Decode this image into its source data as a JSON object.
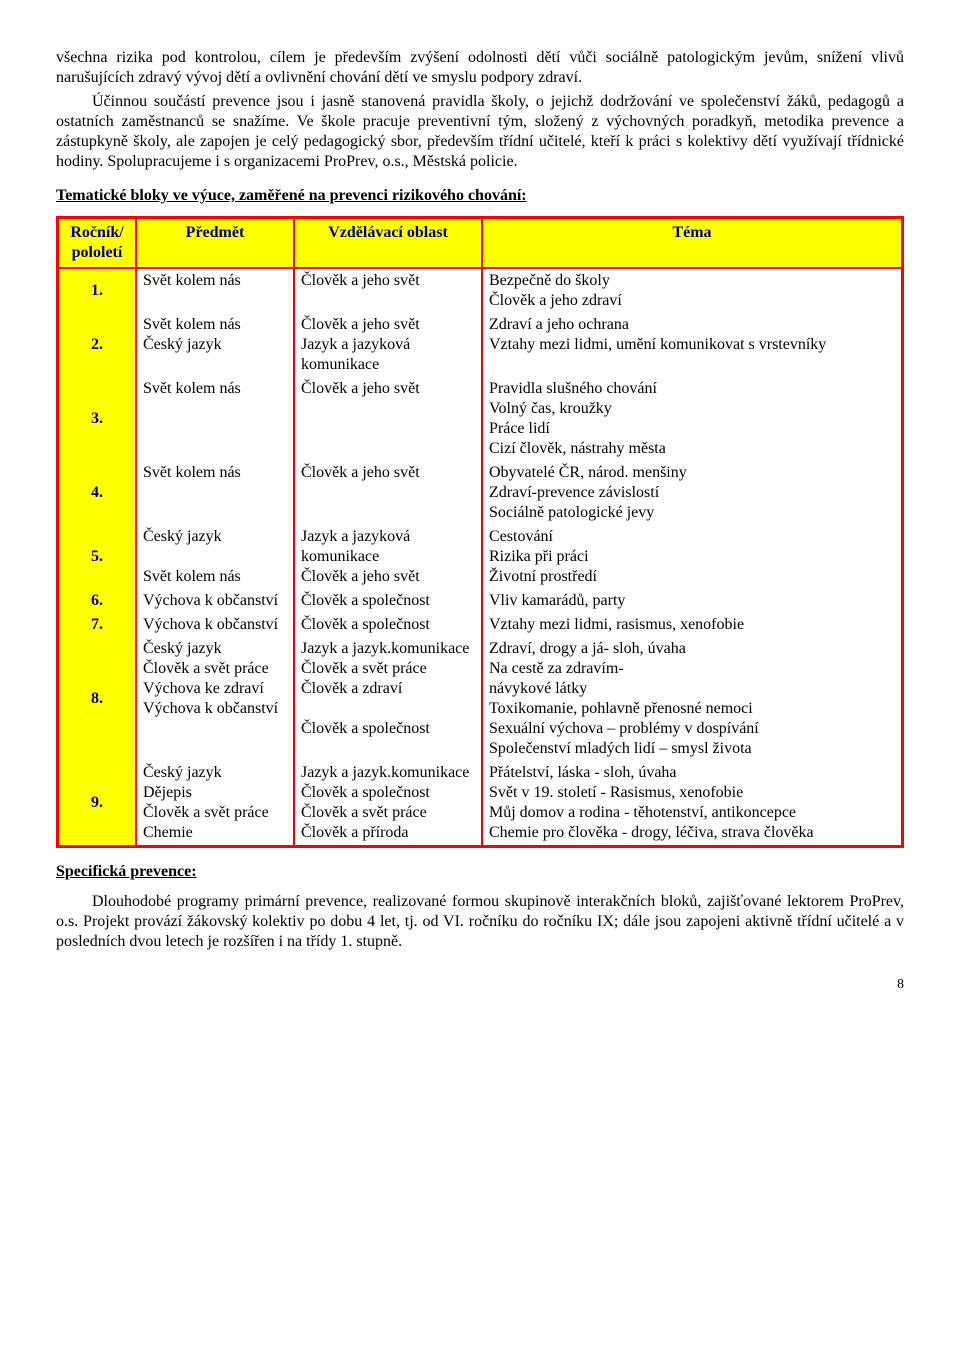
{
  "paragraphs": {
    "p1": "všechna rizika pod kontrolou, cílem je především zvýšení odolnosti dětí vůči sociálně patologickým jevům, snížení vlivů narušujících zdravý vývoj dětí a ovlivnění chování dětí ve smyslu podpory zdraví.",
    "p2": "Účinnou součástí prevence jsou i jasně stanovená pravidla školy, o jejichž dodržování ve společenství žáků, pedagogů a ostatních zaměstnanců se snažíme. Ve škole pracuje preventivní tým, složený z výchovných poradkyň, metodika prevence a zástupkyně školy, ale zapojen je celý pedagogický sbor, především třídní učitelé, kteří k práci s kolektivy dětí využívají třídnické hodiny. Spolupracujeme i s organizacemi ProPrev, o.s., Městská policie."
  },
  "headings": {
    "thematic": "Tematické bloky ve výuce, zaměřené na prevenci rizikového chování:",
    "specific": "Specifická prevence:"
  },
  "table": {
    "headers": {
      "grade": "Ročník/ pololetí",
      "subject": "Předmět",
      "area": "Vzdělávací oblast",
      "topic": "Téma"
    },
    "rows": [
      {
        "num": "1.",
        "subject": [
          "Svět kolem nás"
        ],
        "area": [
          "Člověk a jeho svět"
        ],
        "topic": [
          "Bezpečně do školy",
          "Člověk a jeho zdraví"
        ]
      },
      {
        "num": "2.",
        "subject": [
          "Svět kolem nás",
          "Český jazyk"
        ],
        "area": [
          "Člověk a jeho svět",
          "Jazyk a jazyková komunikace"
        ],
        "topic": [
          "Zdraví a jeho ochrana",
          "Vztahy mezi lidmi, umění komunikovat s vrstevníky"
        ]
      },
      {
        "num": "3.",
        "subject": [
          "Svět kolem nás"
        ],
        "area": [
          "Člověk a jeho svět"
        ],
        "topic": [
          "Pravidla slušného chování",
          "Volný čas, kroužky",
          "Práce lidí",
          "Cizí člověk, nástrahy města"
        ]
      },
      {
        "num": "4.",
        "subject": [
          "Svět kolem nás"
        ],
        "area": [
          "Člověk a jeho svět"
        ],
        "topic": [
          "Obyvatelé ČR, národ. menšiny",
          "Zdraví-prevence závislostí",
          "Sociálně patologické jevy"
        ]
      },
      {
        "num": "5.",
        "subject": [
          "Český jazyk",
          "",
          "Svět kolem nás"
        ],
        "area": [
          "Jazyk a jazyková komunikace",
          "Člověk a jeho svět"
        ],
        "topic": [
          "Cestování",
          "Rizika při práci",
          "Životní prostředí"
        ]
      },
      {
        "num": "6.",
        "subject": [
          "Výchova k občanství"
        ],
        "area": [
          "Člověk a společnost"
        ],
        "topic": [
          "Vliv kamarádů, party"
        ]
      },
      {
        "num": "7.",
        "subject": [
          "Výchova k občanství"
        ],
        "area": [
          "Člověk a společnost"
        ],
        "topic": [
          "Vztahy mezi lidmi, rasismus, xenofobie"
        ]
      },
      {
        "num": "8.",
        "subject": [
          "Český jazyk",
          "Člověk a svět práce",
          "Výchova ke zdraví",
          "Výchova k občanství"
        ],
        "area": [
          "Jazyk a jazyk.komunikace",
          "Člověk a svět práce",
          "Člověk a zdraví",
          "",
          "Člověk a společnost"
        ],
        "topic": [
          "Zdraví, drogy a já- sloh, úvaha",
          "Na cestě za zdravím-",
          "návykové látky",
          "Toxikomanie, pohlavně přenosné nemoci",
          "Sexuální výchova – problémy v dospívání",
          "Společenství mladých lidí – smysl života"
        ]
      },
      {
        "num": "9.",
        "subject": [
          "Český jazyk",
          "Dějepis",
          "Člověk a svět práce",
          "Chemie"
        ],
        "area": [
          "Jazyk a jazyk.komunikace",
          "Člověk a společnost",
          "Člověk a svět práce",
          "Člověk a příroda"
        ],
        "topic": [
          "Přátelství, láska - sloh, úvaha",
          "Svět v 19. století - Rasismus, xenofobie",
          "Můj domov a rodina - těhotenství, antikoncepce",
          "Chemie pro člověka - drogy, léčiva, strava člověka"
        ]
      }
    ]
  },
  "specific_text": "Dlouhodobé programy primární prevence, realizované formou skupinově interakčních bloků, zajišťované lektorem ProPrev, o.s.  Projekt provází žákovský kolektiv po dobu 4 let, tj. od VI. ročníku do ročníku IX; dále jsou zapojeni aktivně třídní učitelé a v posledních dvou letech je rozšířen i na třídy 1. stupně.",
  "page_number": "8"
}
